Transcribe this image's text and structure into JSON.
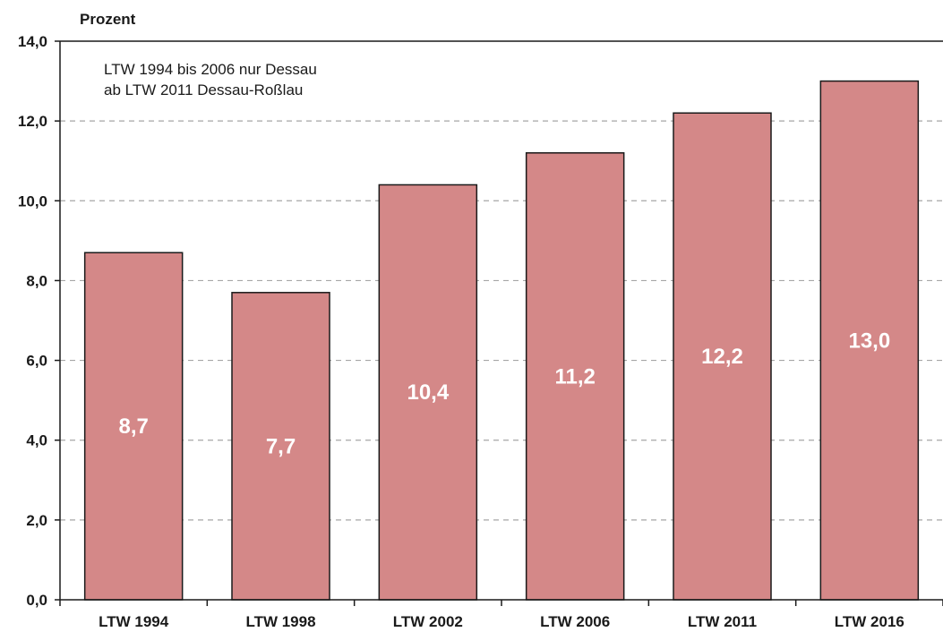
{
  "chart_data": {
    "type": "bar",
    "ylabel": "Prozent",
    "categories": [
      "LTW 1994",
      "LTW 1998",
      "LTW 2002",
      "LTW 2006",
      "LTW 2011",
      "LTW 2016"
    ],
    "values": [
      8.7,
      7.7,
      10.4,
      11.2,
      12.2,
      13.0
    ],
    "value_labels": [
      "8,7",
      "7,7",
      "10,4",
      "11,2",
      "12,2",
      "13,0"
    ],
    "ylim": [
      0,
      14
    ],
    "yticks": [
      0,
      2,
      4,
      6,
      8,
      10,
      12,
      14
    ],
    "ytick_labels": [
      "0,0",
      "2,0",
      "4,0",
      "6,0",
      "8,0",
      "10,0",
      "12,0",
      "14,0"
    ],
    "grid": true,
    "annotations": [
      "LTW 1994 bis 2006 nur Dessau",
      "ab LTW 2011 Dessau-Roßlau"
    ],
    "colors": {
      "bar": "#d48888",
      "bar_stroke": "#1a1a1a",
      "grid": "#a6a6a6",
      "value_text": "#ffffff"
    }
  }
}
